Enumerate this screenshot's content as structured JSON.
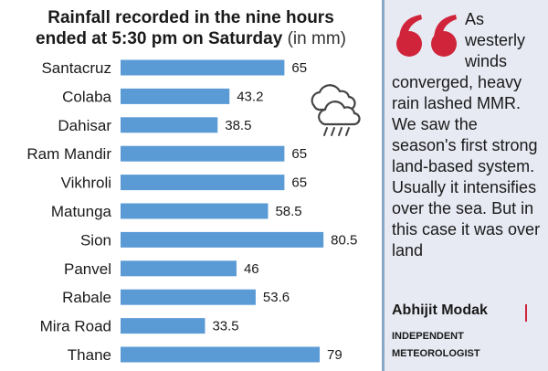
{
  "chart_data": {
    "type": "bar",
    "orientation": "horizontal",
    "title_line1": "Rainfall recorded in the nine hours",
    "title_line2": "ended at 5:30 pm on Saturday",
    "title_unit": "(in mm)",
    "categories": [
      "Santacruz",
      "Colaba",
      "Dahisar",
      "Ram Mandir",
      "Vikhroli",
      "Matunga",
      "Sion",
      "Panvel",
      "Rabale",
      "Mira Road",
      "Thane"
    ],
    "values": [
      65,
      43.2,
      38.5,
      65,
      65,
      58.5,
      80.5,
      46,
      53.6,
      33.5,
      79
    ],
    "value_labels": [
      "65",
      "43.2",
      "38.5",
      "65",
      "65",
      "58.5",
      "80.5",
      "46",
      "53.6",
      "33.5",
      "79"
    ],
    "bar_color": "#5b9bd5",
    "grid": false,
    "legend": "none"
  },
  "decor": {
    "icon": "rain-cloud-icon"
  },
  "quote": {
    "icon": "quote-marks-icon",
    "accent_color": "#d0243a",
    "text": "As westerly winds converged, heavy rain lashed MMR. We saw the season's first strong land-based system. Usually it intensifies over the sea. But in this case it was over land",
    "author": "Abhijit Modak",
    "author_role_line1": "INDEPENDENT",
    "author_role_line2": "METEOROLOGIST"
  }
}
